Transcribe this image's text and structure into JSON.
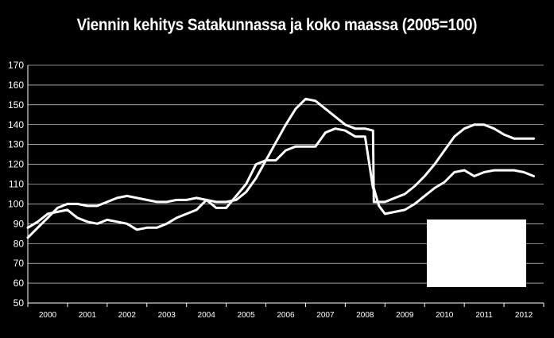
{
  "chart_data": {
    "type": "line",
    "title": "Viennin kehitys Satakunnassa ja koko maassa (2005=100)",
    "xlabel": "",
    "ylabel": "",
    "ylim": [
      50,
      170
    ],
    "y_ticks": [
      "50",
      "60",
      "70",
      "80",
      "90",
      "100",
      "110",
      "120",
      "130",
      "140",
      "150",
      "160",
      "170"
    ],
    "x_ticks": [
      "2000",
      "2001",
      "2002",
      "2003",
      "2004",
      "2005",
      "2006",
      "2007",
      "2008",
      "2009",
      "2010",
      "2011",
      "2012"
    ],
    "grid": "horizontal",
    "series_color": "#ffffff",
    "series": [
      {
        "x": [
          2000.0,
          2000.25,
          2000.5,
          2000.75,
          2001.0,
          2001.25,
          2001.5,
          2001.75,
          2002.0,
          2002.25,
          2002.5,
          2002.75,
          2003.0,
          2003.25,
          2003.5,
          2003.75,
          2004.0,
          2004.25,
          2004.5,
          2004.75,
          2005.0,
          2005.25,
          2005.5,
          2005.75,
          2006.0,
          2006.25,
          2006.5,
          2006.75,
          2007.0,
          2007.25,
          2007.5,
          2007.75,
          2008.0,
          2008.25,
          2008.5,
          2008.7,
          2008.72,
          2008.85,
          2009.0,
          2009.25,
          2009.5,
          2009.75,
          2010.0,
          2010.25,
          2010.5,
          2010.75,
          2011.0,
          2011.25,
          2011.5,
          2011.75,
          2012.0,
          2012.25,
          2012.5,
          2012.75
        ],
        "values": [
          88,
          91,
          95,
          96,
          97,
          93,
          91,
          90,
          92,
          91,
          90,
          87,
          88,
          88,
          90,
          93,
          95,
          97,
          102,
          98,
          98,
          104,
          110,
          120,
          122,
          122,
          127,
          129,
          129,
          129,
          136,
          138,
          137,
          134,
          134,
          108,
          108,
          99,
          95,
          96,
          97,
          100,
          104,
          108,
          111,
          116,
          117,
          114,
          116,
          117,
          117,
          117,
          116,
          114
        ]
      },
      {
        "x": [
          2000.0,
          2000.25,
          2000.5,
          2000.75,
          2001.0,
          2001.25,
          2001.5,
          2001.75,
          2002.0,
          2002.25,
          2002.5,
          2002.75,
          2003.0,
          2003.25,
          2003.5,
          2003.75,
          2004.0,
          2004.25,
          2004.5,
          2004.75,
          2005.0,
          2005.25,
          2005.5,
          2005.75,
          2006.0,
          2006.25,
          2006.5,
          2006.75,
          2007.0,
          2007.25,
          2007.5,
          2007.75,
          2008.0,
          2008.25,
          2008.5,
          2008.7,
          2008.72,
          2008.85,
          2009.0,
          2009.25,
          2009.5,
          2009.75,
          2010.0,
          2010.25,
          2010.5,
          2010.75,
          2011.0,
          2011.25,
          2011.5,
          2011.75,
          2012.0,
          2012.25,
          2012.5,
          2012.75
        ],
        "values": [
          83,
          88,
          93,
          98,
          100,
          100,
          99,
          99,
          101,
          103,
          104,
          103,
          102,
          101,
          101,
          102,
          102,
          103,
          102,
          101,
          101,
          102,
          106,
          113,
          122,
          131,
          140,
          148,
          153,
          152,
          148,
          144,
          140,
          138,
          138,
          137,
          101,
          101,
          101,
          103,
          105,
          109,
          114,
          120,
          127,
          134,
          138,
          140,
          140,
          138,
          135,
          133,
          133,
          133
        ]
      }
    ]
  }
}
